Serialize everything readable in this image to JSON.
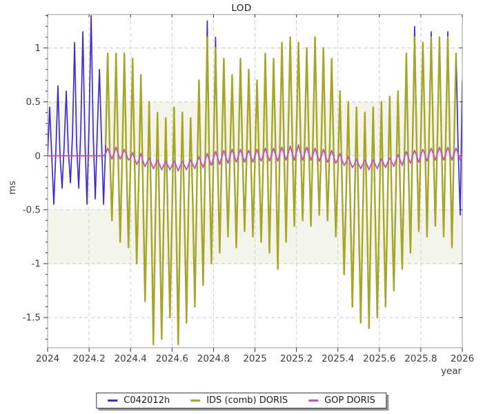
{
  "chart_data": {
    "type": "line",
    "title": "LOD",
    "xlabel": "year",
    "ylabel": "ms",
    "xlim": [
      2024,
      2026
    ],
    "ylim": [
      -1.78,
      1.31
    ],
    "xticks": {
      "values": [
        2024,
        2024.2,
        2024.4,
        2024.6,
        2024.8,
        2025,
        2025.2,
        2025.4,
        2025.6,
        2025.8,
        2026
      ],
      "labels": [
        "2024",
        "2024.2",
        "2024.4",
        "2024.6",
        "2024.8",
        "2025",
        "2025.2",
        "2025.4",
        "2025.6",
        "2025.8",
        "2026"
      ]
    },
    "yticks": {
      "values": [
        1,
        0.5,
        0,
        -0.5,
        -1,
        -1.5
      ],
      "labels": [
        "1",
        "0.5",
        "0",
        "-0.5",
        "-1",
        "-1.5"
      ]
    },
    "y_minor_step": 0.1,
    "grid": {
      "show": true,
      "color": "#cccccc",
      "dash": "5,4"
    },
    "border_color": "#999999",
    "tick_label_color": "#3c3c3c",
    "band_color": "#f4f4ea",
    "bands": [
      {
        "from": 0,
        "to": 0.5
      },
      {
        "from": -1,
        "to": -0.5
      }
    ],
    "legend_position": "bottom-outside",
    "series": [
      {
        "name": "C042012h",
        "color": "#3d2ec9",
        "width": 1.7,
        "x_start": 2024,
        "x_step": 0.01,
        "y": [
          0,
          0.45,
          0,
          -0.45,
          0.05,
          0.65,
          0,
          -0.3,
          0.1,
          0.6,
          0.05,
          -0.25,
          0.2,
          1.05,
          0.1,
          -0.3,
          0.25,
          1.15,
          0.15,
          -0.45,
          0.3,
          1.3,
          0.2,
          -0.4,
          0.25,
          0.8,
          0.15,
          -0.45,
          0.1,
          0.95,
          0.05,
          -0.55,
          0.05,
          0.9,
          0,
          -0.7,
          0,
          0.9,
          -0.05,
          -0.75,
          -0.05,
          0.85,
          -0.1,
          -0.9,
          -0.2,
          0.7,
          -0.3,
          -1.2,
          -0.45,
          0.45,
          -0.55,
          -1.6,
          -0.55,
          0.35,
          -0.6,
          -1.65,
          -0.55,
          0.3,
          -0.6,
          -1.4,
          -0.55,
          0.4,
          -0.6,
          -1.55,
          -0.5,
          0.35,
          -0.55,
          -1.45,
          -0.4,
          0.3,
          -0.45,
          -1.3,
          -0.25,
          0.65,
          -0.3,
          -1.1,
          -0.05,
          1.25,
          -0.1,
          -0.95,
          0,
          1.1,
          -0.05,
          -0.85,
          0,
          0.85,
          -0.05,
          -0.7,
          0,
          0.7,
          -0.05,
          -0.8,
          0,
          0.85,
          0,
          -0.65,
          0,
          0.75,
          0,
          -0.7,
          -0.05,
          0.65,
          -0.05,
          -0.75,
          -0.05,
          0.9,
          0,
          -0.85,
          0,
          0.85,
          0.05,
          -1,
          0.1,
          1,
          0.1,
          -0.75,
          0.15,
          1.1,
          0.15,
          -0.6,
          0.2,
          1,
          0.15,
          -0.55,
          0.15,
          0.95,
          0.1,
          -0.6,
          0.15,
          1.05,
          0.1,
          -0.5,
          0.1,
          0.95,
          0.05,
          -0.55,
          0.05,
          0.85,
          0,
          -0.7,
          -0.15,
          0.55,
          -0.25,
          -1,
          -0.35,
          0.45,
          -0.45,
          -1.3,
          -0.5,
          0.4,
          -0.55,
          -1.45,
          -0.55,
          0.35,
          -0.55,
          -1.5,
          -0.5,
          0.4,
          -0.55,
          -1.4,
          -0.5,
          0.45,
          -0.5,
          -1.3,
          -0.4,
          0.5,
          -0.45,
          -1.15,
          -0.3,
          0.55,
          -0.3,
          -0.95,
          -0.1,
          0.9,
          -0.1,
          -0.8,
          0.1,
          1.2,
          0.1,
          -0.65,
          0.15,
          1,
          0.15,
          -0.7,
          0.2,
          1.15,
          0.15,
          -0.6,
          0.15,
          1.05,
          0.1,
          -0.7,
          0.15,
          1.15,
          0.1,
          -0.8,
          0.1,
          0.95,
          0.05,
          -0.55,
          0.7
        ]
      },
      {
        "name": "IDS (comb) DORIS",
        "color": "#a6a62a",
        "width": 2.4,
        "x_start": 2024.28,
        "x_step": 0.01,
        "y": [
          0.1,
          0.95,
          0.05,
          -0.6,
          0.05,
          0.95,
          0,
          -0.8,
          0,
          0.95,
          -0.05,
          -0.85,
          -0.05,
          0.9,
          -0.1,
          -1,
          -0.2,
          0.75,
          -0.3,
          -1.35,
          -0.45,
          0.5,
          -0.55,
          -1.75,
          -0.55,
          0.4,
          -0.6,
          -1.7,
          -0.55,
          0.35,
          -0.6,
          -1.5,
          -0.55,
          0.45,
          -0.6,
          -1.75,
          -0.5,
          0.4,
          -0.55,
          -1.55,
          -0.4,
          0.35,
          -0.45,
          -1.4,
          -0.25,
          0.7,
          -0.3,
          -1.2,
          -0.05,
          1.1,
          -0.1,
          -1,
          0,
          1,
          -0.05,
          -0.9,
          0,
          0.9,
          -0.05,
          -0.75,
          0,
          0.75,
          -0.05,
          -0.85,
          0,
          0.9,
          0,
          -0.7,
          0,
          0.8,
          0,
          -0.75,
          -0.05,
          0.7,
          -0.05,
          -0.8,
          -0.05,
          0.95,
          0,
          -0.9,
          0,
          0.9,
          0.05,
          -1.05,
          0.1,
          1.05,
          0.1,
          -0.8,
          0.15,
          1.1,
          0.15,
          -0.65,
          0.2,
          1.05,
          0.15,
          -0.6,
          0.15,
          1,
          0.1,
          -0.65,
          0.15,
          1.1,
          0.1,
          -0.55,
          0.1,
          1,
          0.05,
          -0.6,
          0.05,
          0.9,
          0,
          -0.75,
          -0.15,
          0.6,
          -0.25,
          -1.1,
          -0.35,
          0.5,
          -0.45,
          -1.4,
          -0.5,
          0.45,
          -0.55,
          -1.55,
          -0.55,
          0.4,
          -0.55,
          -1.6,
          -0.5,
          0.45,
          -0.55,
          -1.5,
          -0.5,
          0.5,
          -0.5,
          -1.4,
          -0.4,
          0.55,
          -0.45,
          -1.25,
          -0.3,
          0.6,
          -0.3,
          -1.05,
          -0.1,
          0.95,
          -0.1,
          -0.9,
          0.1,
          1.1,
          0.1,
          -0.7,
          0.15,
          1.05,
          0.15,
          -0.75,
          0.2,
          1.1,
          0.15,
          -0.65,
          0.15,
          1.1,
          0.1,
          -0.75,
          0.15,
          1.1,
          0.1,
          -0.85,
          0.1,
          0.95
        ]
      },
      {
        "name": "GOP DORIS",
        "color": "#c153c1",
        "width": 1.8,
        "x_start": 2024,
        "x_step": 0.01,
        "y": [
          0,
          0,
          0,
          0,
          0,
          0,
          0,
          0,
          0,
          0,
          0,
          0,
          0,
          0,
          0,
          0,
          0,
          0,
          0,
          0,
          0,
          0,
          0,
          0,
          0,
          0,
          0,
          0,
          0.02,
          0.07,
          0.02,
          -0.03,
          0.02,
          0.08,
          0.02,
          -0.03,
          0.01,
          0.06,
          0.01,
          -0.04,
          -0.02,
          0.03,
          -0.03,
          -0.08,
          -0.04,
          0.02,
          -0.05,
          -0.1,
          -0.06,
          -0.02,
          -0.07,
          -0.12,
          -0.08,
          -0.04,
          -0.08,
          -0.13,
          -0.09,
          -0.05,
          -0.09,
          -0.13,
          -0.09,
          -0.05,
          -0.09,
          -0.14,
          -0.09,
          -0.05,
          -0.09,
          -0.13,
          -0.08,
          -0.04,
          -0.08,
          -0.12,
          -0.06,
          -0.01,
          -0.06,
          -0.11,
          -0.04,
          0.02,
          -0.04,
          -0.09,
          -0.02,
          0.04,
          -0.02,
          -0.08,
          -0.01,
          0.05,
          -0.01,
          -0.07,
          0,
          0.06,
          0,
          -0.06,
          0,
          0.06,
          0,
          -0.06,
          0,
          0.05,
          0,
          -0.06,
          0,
          0.06,
          0,
          -0.05,
          0.01,
          0.07,
          0.01,
          -0.05,
          0.01,
          0.07,
          0.01,
          -0.05,
          0.02,
          0.08,
          0.02,
          -0.04,
          0.02,
          0.09,
          0.02,
          -0.04,
          0.03,
          0.1,
          0.02,
          -0.04,
          0.02,
          0.08,
          0.02,
          -0.04,
          0.01,
          0.07,
          0.01,
          -0.05,
          0,
          0.06,
          0,
          -0.06,
          -0.01,
          0.05,
          -0.01,
          -0.07,
          -0.03,
          0.02,
          -0.04,
          -0.09,
          -0.06,
          -0.01,
          -0.06,
          -0.11,
          -0.08,
          -0.03,
          -0.08,
          -0.12,
          -0.08,
          -0.04,
          -0.08,
          -0.13,
          -0.08,
          -0.04,
          -0.08,
          -0.12,
          -0.07,
          -0.03,
          -0.07,
          -0.11,
          -0.06,
          -0.02,
          -0.06,
          -0.1,
          -0.04,
          0.01,
          -0.04,
          -0.09,
          -0.02,
          0.04,
          -0.02,
          -0.07,
          0,
          0.05,
          0,
          -0.06,
          0.01,
          0.06,
          0.01,
          -0.05,
          0.02,
          0.07,
          0.02,
          -0.04,
          0.02,
          0.08,
          0.02,
          -0.04,
          0.02,
          0.08,
          0.02,
          -0.04,
          0.02,
          0.07,
          0.02,
          -0.04,
          0.04
        ]
      }
    ]
  },
  "legend": {
    "items": [
      {
        "label": "C042012h"
      },
      {
        "label": "IDS (comb) DORIS"
      },
      {
        "label": "GOP DORIS"
      }
    ]
  }
}
